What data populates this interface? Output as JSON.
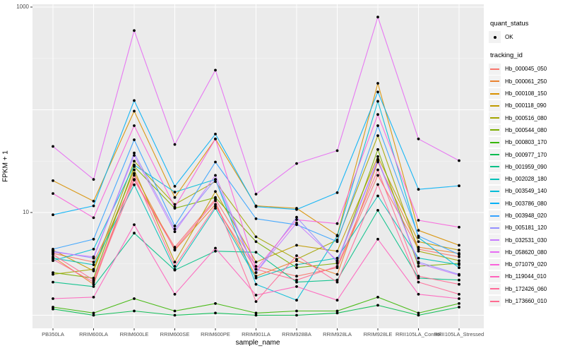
{
  "figure": {
    "panel_bg": "#EBEBEB",
    "grid_color": "#FFFFFF",
    "point_color": "#000000",
    "tick_color": "#333333"
  },
  "axes": {
    "x": {
      "title": "sample_name",
      "categories": [
        "PB350LA",
        "RRIM600LA",
        "RRIM600LE",
        "RRIM600SE",
        "RRIM600PE",
        "RRIM901LA",
        "RRIM928BA",
        "RRIM928LA",
        "RRIM928LE",
        "RRII105LA_Control",
        "RRII105LA_Stressed"
      ]
    },
    "y": {
      "title": "FPKM + 1",
      "scale": "log10",
      "tick_labels": [
        "1000",
        "10"
      ],
      "tick_values": [
        1000,
        10
      ]
    }
  },
  "legend": {
    "quant_status": {
      "title": "quant_status",
      "items": [
        {
          "label": "OK",
          "marker": "point",
          "color": "#000000"
        }
      ]
    },
    "tracking_id": {
      "title": "tracking_id",
      "items": [
        {
          "label": "Hb_000045_050",
          "color": "#F8766D"
        },
        {
          "label": "Hb_000061_250",
          "color": "#EA8331"
        },
        {
          "label": "Hb_000108_150",
          "color": "#D89000"
        },
        {
          "label": "Hb_000118_090",
          "color": "#C09B00"
        },
        {
          "label": "Hb_000516_080",
          "color": "#A3A500"
        },
        {
          "label": "Hb_000544_080",
          "color": "#7CAE00"
        },
        {
          "label": "Hb_000803_170",
          "color": "#39B600"
        },
        {
          "label": "Hb_000977_170",
          "color": "#00BB4E"
        },
        {
          "label": "Hb_001959_090",
          "color": "#00C087"
        },
        {
          "label": "Hb_002028_180",
          "color": "#00C0B8"
        },
        {
          "label": "Hb_003549_140",
          "color": "#00BCD8"
        },
        {
          "label": "Hb_003786_080",
          "color": "#00B0F6"
        },
        {
          "label": "Hb_003948_020",
          "color": "#35A2FF"
        },
        {
          "label": "Hb_005181_120",
          "color": "#9590FF"
        },
        {
          "label": "Hb_032531_030",
          "color": "#C77CFF"
        },
        {
          "label": "Hb_058620_080",
          "color": "#E76BF3"
        },
        {
          "label": "Hb_071079_020",
          "color": "#FA62DB"
        },
        {
          "label": "Hb_119044_010",
          "color": "#FF62BC"
        },
        {
          "label": "Hb_172426_060",
          "color": "#FF6A98"
        },
        {
          "label": "Hb_173660_010",
          "color": "#FF6C91"
        }
      ]
    }
  },
  "chart_data": {
    "type": "line",
    "xlabel": "sample_name",
    "ylabel": "FPKM + 1",
    "yscale": "log10",
    "ylim": [
      0.77,
      1060
    ],
    "y_major_gridlines": [
      1,
      10,
      100,
      1000
    ],
    "y_minor_gridlines": [
      3.162,
      31.62,
      316.2
    ],
    "point_marker": "filled-black-dot (quant_status OK)",
    "categories": [
      "PB350LA",
      "RRIM600LA",
      "RRIM600LE",
      "RRIM600SE",
      "RRIM600PE",
      "RRIM901LA",
      "RRIM928BA",
      "RRIM928LA",
      "RRIM928LE",
      "RRII105LA_Control",
      "RRII105LA_Stressed"
    ],
    "series": [
      {
        "name": "Hb_000045_050",
        "color": "#F8766D",
        "values": [
          4.0,
          3.3,
          21,
          4.6,
          13.5,
          3.0,
          2.4,
          2.9,
          23,
          4.4,
          3.7
        ]
      },
      {
        "name": "Hb_000061_250",
        "color": "#EA8331",
        "values": [
          3.7,
          2.0,
          24,
          4.3,
          12,
          2.4,
          3.4,
          2.5,
          31,
          4.6,
          4.0
        ]
      },
      {
        "name": "Hb_000108_150",
        "color": "#D89000",
        "values": [
          20.4,
          12.9,
          97,
          14,
          52,
          11.6,
          11,
          6.0,
          181,
          6.7,
          4.8
        ]
      },
      {
        "name": "Hb_000118_090",
        "color": "#C09B00",
        "values": [
          4.3,
          2.7,
          26,
          3.3,
          16,
          3.3,
          4.8,
          4.2,
          35,
          5.2,
          4.3
        ]
      },
      {
        "name": "Hb_000516_080",
        "color": "#A3A500",
        "values": [
          2.5,
          2.8,
          31.6,
          12,
          20,
          5.8,
          3.5,
          5.4,
          56,
          4.2,
          3.4
        ]
      },
      {
        "name": "Hb_000544_080",
        "color": "#7CAE00",
        "values": [
          2.6,
          2.3,
          28,
          11,
          14,
          5.2,
          2.9,
          3.2,
          41,
          3.0,
          3.2
        ]
      },
      {
        "name": "Hb_000803_170",
        "color": "#39B600",
        "values": [
          1.2,
          1.05,
          1.45,
          1.1,
          1.3,
          1.05,
          1.1,
          1.1,
          1.5,
          1.05,
          1.3
        ]
      },
      {
        "name": "Hb_000977_170",
        "color": "#00BB4E",
        "values": [
          1.15,
          1.0,
          1.1,
          1.0,
          1.05,
          1.0,
          1.0,
          1.05,
          1.25,
          1.0,
          1.2
        ]
      },
      {
        "name": "Hb_001959_090",
        "color": "#00C087",
        "values": [
          2.1,
          1.9,
          6.3,
          2.75,
          4.2,
          4.1,
          2.1,
          2.2,
          10.5,
          2.3,
          2.2
        ]
      },
      {
        "name": "Hb_002028_180",
        "color": "#00C0B8",
        "values": [
          3.6,
          3.1,
          18.6,
          2.8,
          11,
          2.3,
          3.1,
          3.6,
          14.5,
          3.6,
          3.1
        ]
      },
      {
        "name": "Hb_003549_140",
        "color": "#00BCD8",
        "values": [
          3.4,
          4.4,
          29,
          15.8,
          21,
          2.0,
          1.4,
          5.9,
          121,
          5.7,
          2.9
        ]
      },
      {
        "name": "Hb_003786_080",
        "color": "#00B0F6",
        "values": [
          9.5,
          11.6,
          123,
          18,
          58,
          11.4,
          10.7,
          15.6,
          149,
          16.8,
          18.2
        ]
      },
      {
        "name": "Hb_003948_020",
        "color": "#35A2FF",
        "values": [
          4.4,
          5.5,
          51,
          7.4,
          31,
          8.7,
          7.6,
          5.2,
          70,
          5.9,
          3.9
        ]
      },
      {
        "name": "Hb_005181_120",
        "color": "#9590FF",
        "values": [
          4.2,
          3.6,
          38,
          6.9,
          21,
          2.6,
          9.0,
          3.3,
          32,
          3.3,
          2.5
        ]
      },
      {
        "name": "Hb_032531_030",
        "color": "#C77CFF",
        "values": [
          4.1,
          3.7,
          36,
          6.5,
          23,
          2.6,
          7.9,
          3.4,
          33,
          3.2,
          2.45
        ]
      },
      {
        "name": "Hb_058620_080",
        "color": "#E76BF3",
        "values": [
          44,
          21,
          590,
          46,
          243,
          15.1,
          30,
          40,
          800,
          52,
          32
        ]
      },
      {
        "name": "Hb_071079_020",
        "color": "#FA62DB",
        "values": [
          15.3,
          8.9,
          70,
          11.3,
          52,
          2.8,
          8.5,
          7.8,
          90,
          8.4,
          7.2
        ]
      },
      {
        "name": "Hb_119044_010",
        "color": "#FF62BC",
        "values": [
          1.45,
          1.5,
          7.6,
          1.6,
          4.5,
          1.57,
          1.9,
          1.4,
          5.5,
          1.6,
          1.45
        ]
      },
      {
        "name": "Hb_172426_060",
        "color": "#FF6A98",
        "values": [
          3.5,
          2.1,
          20.7,
          4.4,
          13,
          1.36,
          3.8,
          2.1,
          18.7,
          2.1,
          1.6
        ]
      },
      {
        "name": "Hb_173660_010",
        "color": "#FF6C91",
        "values": [
          3.9,
          2.2,
          23,
          3.0,
          11.5,
          2.8,
          2.2,
          3.0,
          26,
          2.4,
          2.0
        ]
      }
    ]
  }
}
